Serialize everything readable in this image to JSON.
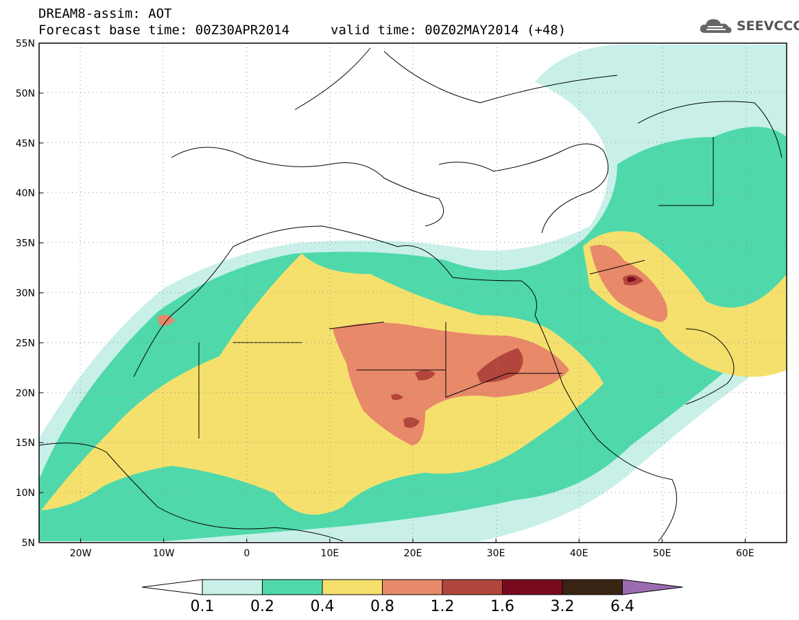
{
  "title": {
    "line1": "DREAM8-assim: AOT",
    "line2_left": "Forecast base time: 00Z30APR2014",
    "line2_right": "valid time: 00Z02MAY2014 (+48)"
  },
  "logo": {
    "text": "SEEVCCC",
    "icon": "cloud-icon"
  },
  "map": {
    "lon_range": [
      -25,
      65
    ],
    "lat_range": [
      5,
      55
    ],
    "lat_ticks": [
      "5N",
      "10N",
      "15N",
      "20N",
      "25N",
      "30N",
      "35N",
      "40N",
      "45N",
      "50N",
      "55N"
    ],
    "lon_ticks": [
      "20W",
      "10W",
      "0",
      "10E",
      "20E",
      "30E",
      "40E",
      "50E",
      "60E"
    ],
    "grid": "dotted"
  },
  "colorbar": {
    "labels": [
      "0.1",
      "0.2",
      "0.4",
      "0.8",
      "1.2",
      "1.6",
      "3.2",
      "6.4"
    ],
    "colors": [
      "#ffffff",
      "#c8f0e8",
      "#4fd8aa",
      "#f5e06e",
      "#e8896a",
      "#b3463c",
      "#7a0a20",
      "#3a2414",
      "#9b6bb0"
    ]
  }
}
